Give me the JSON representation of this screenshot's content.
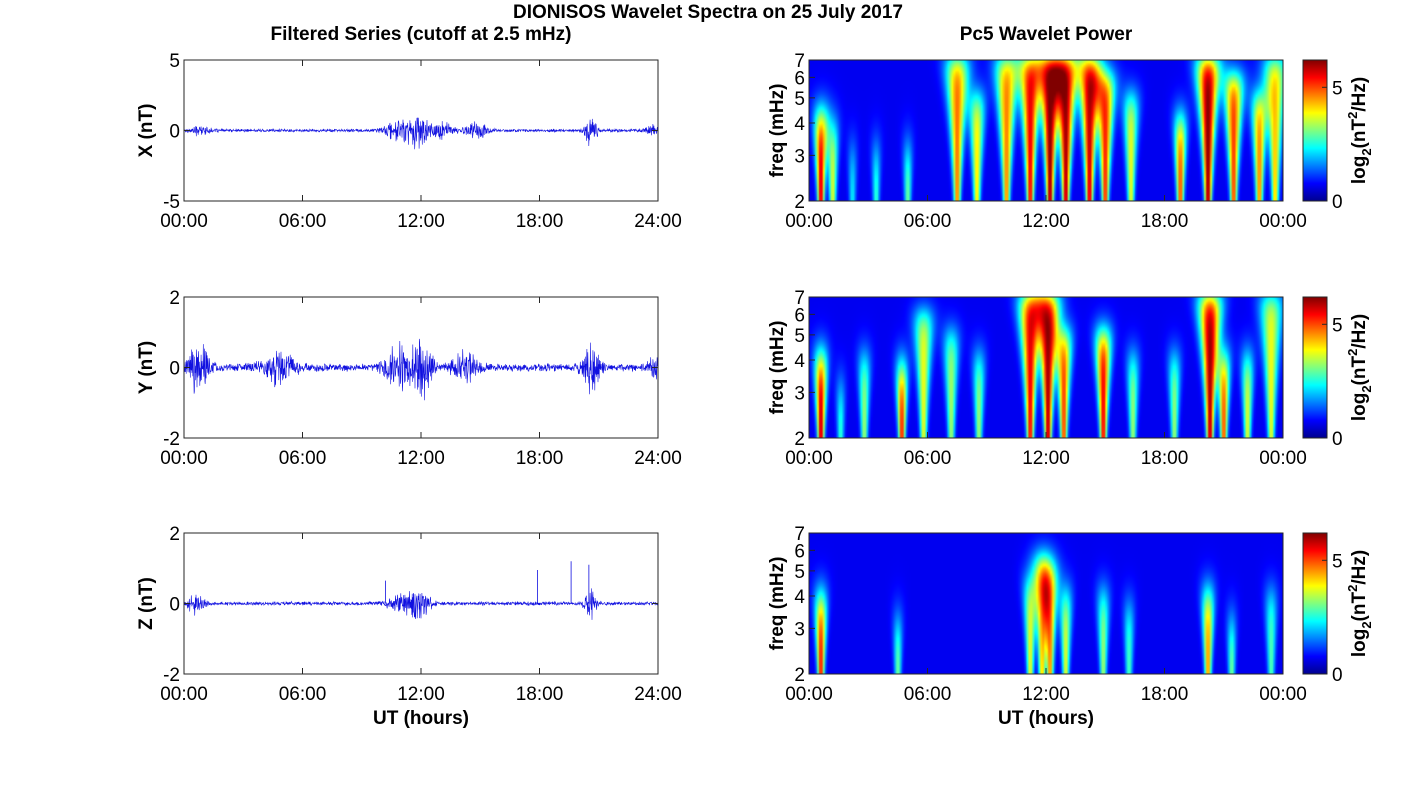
{
  "figure": {
    "title": "DIONISOS Wavelet Spectra on 25 July 2017",
    "left_column_title": "Filtered Series (cutoff at 2.5 mHz)",
    "right_column_title": "Pc5 Wavelet Power",
    "colors": {
      "trace": "#1010e0",
      "frame": "#262626"
    }
  },
  "chart_data": [
    {
      "id": "series-x",
      "type": "line",
      "title": "",
      "xlabel": "",
      "ylabel": "X (nT)",
      "x_unit": "UT time",
      "x_ticks": [
        "00:00",
        "06:00",
        "12:00",
        "18:00",
        "24:00"
      ],
      "xlim": [
        0,
        24
      ],
      "ylim": [
        -5,
        5
      ],
      "y_ticks": [
        -5,
        0,
        5
      ],
      "grid": false,
      "series": [
        {
          "color": "#1010e0",
          "baseline_amplitude": 0.12,
          "bursts": [
            {
              "t": 0.8,
              "amp": 0.35,
              "width": 0.5
            },
            {
              "t": 10.9,
              "amp": 0.9,
              "width": 0.7
            },
            {
              "t": 11.9,
              "amp": 1.4,
              "width": 0.5
            },
            {
              "t": 13.0,
              "amp": 0.7,
              "width": 0.6
            },
            {
              "t": 14.8,
              "amp": 0.6,
              "width": 0.6
            },
            {
              "t": 20.6,
              "amp": 1.3,
              "width": 0.3
            },
            {
              "t": 23.8,
              "amp": 0.4,
              "width": 0.4
            }
          ]
        }
      ]
    },
    {
      "id": "spectrum-x",
      "type": "heatmap",
      "title": "",
      "xlabel": "",
      "ylabel": "freq (mHz)",
      "x_ticks": [
        "00:00",
        "06:00",
        "12:00",
        "18:00",
        "00:00"
      ],
      "xlim": [
        0,
        24
      ],
      "ylim": [
        2,
        7
      ],
      "y_scale": "log",
      "y_ticks": [
        2,
        3,
        4,
        5,
        6,
        7
      ],
      "colorbar": {
        "label": "log2(nT²/Hz)",
        "label_base": "log",
        "label_sub": "2",
        "label_open": "(nT",
        "label_sup": "2",
        "label_tail": "/Hz)",
        "range": [
          0,
          6.2
        ],
        "ticks": [
          0,
          5
        ],
        "colormap": "jet"
      },
      "blobs": [
        {
          "t": 0.6,
          "f_top": 4.2,
          "amp": 5.8
        },
        {
          "t": 1.2,
          "f_top": 3.8,
          "amp": 3.5
        },
        {
          "t": 2.2,
          "f_top": 3.0,
          "amp": 2.0
        },
        {
          "t": 3.4,
          "f_top": 3.0,
          "amp": 2.5
        },
        {
          "t": 5.0,
          "f_top": 3.0,
          "amp": 3.0
        },
        {
          "t": 7.5,
          "f_top": 7.0,
          "amp": 4.6
        },
        {
          "t": 8.5,
          "f_top": 5.0,
          "amp": 3.8
        },
        {
          "t": 10.0,
          "f_top": 7.0,
          "amp": 4.5
        },
        {
          "t": 11.2,
          "f_top": 7.0,
          "amp": 5.5
        },
        {
          "t": 12.2,
          "f_top": 7.0,
          "amp": 6.2
        },
        {
          "t": 13.0,
          "f_top": 7.0,
          "amp": 6.0
        },
        {
          "t": 14.2,
          "f_top": 7.0,
          "amp": 5.8
        },
        {
          "t": 15.0,
          "f_top": 6.0,
          "amp": 5.2
        },
        {
          "t": 16.3,
          "f_top": 5.0,
          "amp": 3.5
        },
        {
          "t": 18.8,
          "f_top": 4.0,
          "amp": 5.0
        },
        {
          "t": 20.2,
          "f_top": 7.0,
          "amp": 6.2
        },
        {
          "t": 21.5,
          "f_top": 6.0,
          "amp": 5.0
        },
        {
          "t": 22.8,
          "f_top": 5.0,
          "amp": 4.5
        },
        {
          "t": 23.6,
          "f_top": 7.0,
          "amp": 4.0
        }
      ]
    },
    {
      "id": "series-y",
      "type": "line",
      "title": "",
      "xlabel": "",
      "ylabel": "Y (nT)",
      "x_unit": "UT time",
      "x_ticks": [
        "00:00",
        "06:00",
        "12:00",
        "18:00",
        "24:00"
      ],
      "xlim": [
        0,
        24
      ],
      "ylim": [
        -2,
        2
      ],
      "y_ticks": [
        -2,
        0,
        2
      ],
      "grid": false,
      "series": [
        {
          "color": "#1010e0",
          "baseline_amplitude": 0.13,
          "bursts": [
            {
              "t": 0.7,
              "amp": 0.9,
              "width": 0.5
            },
            {
              "t": 4.8,
              "amp": 0.5,
              "width": 0.8
            },
            {
              "t": 10.8,
              "amp": 0.7,
              "width": 0.6
            },
            {
              "t": 12.0,
              "amp": 1.0,
              "width": 0.5
            },
            {
              "t": 14.2,
              "amp": 0.5,
              "width": 0.6
            },
            {
              "t": 20.6,
              "amp": 0.8,
              "width": 0.4
            },
            {
              "t": 23.9,
              "amp": 0.6,
              "width": 0.3
            }
          ]
        }
      ]
    },
    {
      "id": "spectrum-y",
      "type": "heatmap",
      "title": "",
      "xlabel": "",
      "ylabel": "freq (mHz)",
      "x_ticks": [
        "00:00",
        "06:00",
        "12:00",
        "18:00",
        "00:00"
      ],
      "xlim": [
        0,
        24
      ],
      "ylim": [
        2,
        7
      ],
      "y_scale": "log",
      "y_ticks": [
        2,
        3,
        4,
        5,
        6,
        7
      ],
      "colorbar": {
        "label": "log2(nT²/Hz)",
        "label_base": "log",
        "label_sub": "2",
        "label_open": "(nT",
        "label_sup": "2",
        "label_tail": "/Hz)",
        "range": [
          0,
          6.2
        ],
        "ticks": [
          0,
          5
        ],
        "colormap": "jet"
      },
      "blobs": [
        {
          "t": 0.6,
          "f_top": 4.0,
          "amp": 6.0
        },
        {
          "t": 1.6,
          "f_top": 3.0,
          "amp": 2.5
        },
        {
          "t": 2.8,
          "f_top": 4.0,
          "amp": 3.0
        },
        {
          "t": 4.7,
          "f_top": 3.6,
          "amp": 5.5
        },
        {
          "t": 5.8,
          "f_top": 6.0,
          "amp": 3.5
        },
        {
          "t": 7.2,
          "f_top": 5.0,
          "amp": 3.0
        },
        {
          "t": 8.6,
          "f_top": 4.0,
          "amp": 3.0
        },
        {
          "t": 11.2,
          "f_top": 7.0,
          "amp": 5.5
        },
        {
          "t": 12.1,
          "f_top": 7.0,
          "amp": 6.0
        },
        {
          "t": 12.9,
          "f_top": 5.0,
          "amp": 5.0
        },
        {
          "t": 14.9,
          "f_top": 5.0,
          "amp": 5.5
        },
        {
          "t": 16.4,
          "f_top": 4.0,
          "amp": 3.0
        },
        {
          "t": 18.5,
          "f_top": 4.0,
          "amp": 3.0
        },
        {
          "t": 20.3,
          "f_top": 7.0,
          "amp": 6.0
        },
        {
          "t": 21.0,
          "f_top": 4.0,
          "amp": 5.0
        },
        {
          "t": 22.2,
          "f_top": 4.0,
          "amp": 3.5
        },
        {
          "t": 23.4,
          "f_top": 7.0,
          "amp": 3.5
        }
      ]
    },
    {
      "id": "series-z",
      "type": "line",
      "title": "",
      "xlabel": "UT (hours)",
      "ylabel": "Z (nT)",
      "x_unit": "UT time",
      "x_ticks": [
        "00:00",
        "06:00",
        "12:00",
        "18:00",
        "24:00"
      ],
      "xlim": [
        0,
        24
      ],
      "ylim": [
        -2,
        2
      ],
      "y_ticks": [
        -2,
        0,
        2
      ],
      "grid": false,
      "series": [
        {
          "color": "#1010e0",
          "baseline_amplitude": 0.06,
          "bursts": [
            {
              "t": 0.6,
              "amp": 0.35,
              "width": 0.4
            },
            {
              "t": 10.9,
              "amp": 0.3,
              "width": 0.6
            },
            {
              "t": 11.9,
              "amp": 0.55,
              "width": 0.5
            },
            {
              "t": 20.6,
              "amp": 0.5,
              "width": 0.3
            }
          ],
          "spikes": [
            {
              "t": 10.2,
              "value": 0.65
            },
            {
              "t": 17.9,
              "value": 0.95
            },
            {
              "t": 19.6,
              "value": 1.2
            },
            {
              "t": 20.5,
              "value": 1.1
            }
          ]
        }
      ]
    },
    {
      "id": "spectrum-z",
      "type": "heatmap",
      "title": "",
      "xlabel": "UT (hours)",
      "ylabel": "freq (mHz)",
      "x_ticks": [
        "00:00",
        "06:00",
        "12:00",
        "18:00",
        "00:00"
      ],
      "xlim": [
        0,
        24
      ],
      "ylim": [
        2,
        7
      ],
      "y_scale": "log",
      "y_ticks": [
        2,
        3,
        4,
        5,
        6,
        7
      ],
      "colorbar": {
        "label": "log2(nT²/Hz)",
        "label_base": "log",
        "label_sub": "2",
        "label_open": "(nT",
        "label_sup": "2",
        "label_tail": "/Hz)",
        "range": [
          0,
          6.2
        ],
        "ticks": [
          0,
          5
        ],
        "colormap": "jet"
      },
      "blobs": [
        {
          "t": 0.6,
          "f_top": 3.8,
          "amp": 5.5
        },
        {
          "t": 4.5,
          "f_top": 3.0,
          "amp": 3.0
        },
        {
          "t": 11.2,
          "f_top": 4.5,
          "amp": 3.5
        },
        {
          "t": 11.8,
          "f_top": 5.5,
          "amp": 4.0
        },
        {
          "t": 12.2,
          "f_top": 5.0,
          "amp": 4.5
        },
        {
          "t": 13.0,
          "f_top": 4.0,
          "amp": 3.5
        },
        {
          "t": 14.9,
          "f_top": 4.0,
          "amp": 3.0
        },
        {
          "t": 16.2,
          "f_top": 3.5,
          "amp": 2.5
        },
        {
          "t": 20.2,
          "f_top": 4.0,
          "amp": 4.5
        },
        {
          "t": 21.4,
          "f_top": 3.0,
          "amp": 3.0
        },
        {
          "t": 23.4,
          "f_top": 4.0,
          "amp": 2.5
        }
      ]
    }
  ]
}
